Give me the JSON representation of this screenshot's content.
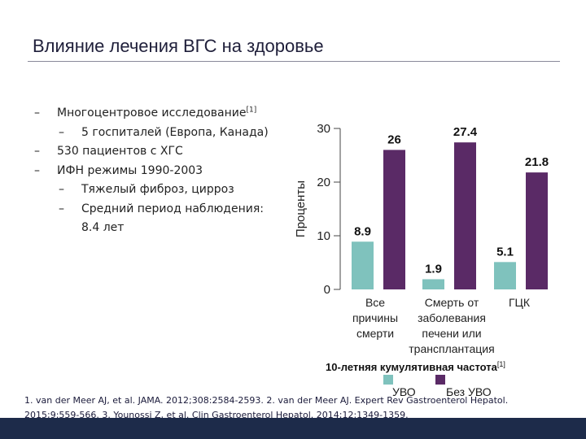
{
  "slide": {
    "title": "Влияние лечения ВГС на здоровье"
  },
  "bullets": {
    "b1_text": "Многоцентровое исследование",
    "b1_sup": "[1]",
    "b1a": "5 госпиталей (Европа, Канада)",
    "b2": "530 пациентов с ХГС",
    "b3": "ИФН режимы 1990-2003",
    "b3a": "Тяжелый фиброз, цирроз",
    "b3b": "Средний период наблюдения:",
    "b3b_cont": "8.4 лет",
    "dash": "–"
  },
  "chart_data": {
    "type": "bar",
    "ylabel": "Проценты",
    "ylim": [
      0,
      30
    ],
    "yticks": [
      0,
      10,
      20,
      30
    ],
    "categories": [
      [
        "Все",
        "причины",
        "смерти"
      ],
      [
        "Смерть от",
        "заболевания",
        "печени или",
        "трансплантация"
      ],
      [
        "ГЦК"
      ]
    ],
    "series": [
      {
        "name": "УВО",
        "values": [
          8.9,
          1.9,
          5.1
        ],
        "color": "#7fc2bd"
      },
      {
        "name": "Без УВО",
        "values": [
          26,
          27.4,
          21.8
        ],
        "color": "#5a2a66"
      }
    ],
    "value_labels": [
      [
        "8.9",
        "1.9",
        "5.1"
      ],
      [
        "26",
        "27.4",
        "21.8"
      ]
    ],
    "xlabel": "10-летняя кумулятивная частота",
    "xlabel_sup": "[1]",
    "legend_position": "bottom"
  },
  "references": {
    "line1": "1. van der Meer AJ, et al. JAMA. 2012;308:2584-2593. 2. van der Meer AJ. Expert Rev Gastroenterol Hepatol.",
    "line2": "2015;9:559-566. 3. Younossi Z, et al. Clin Gastroenterol Hepatol. 2014;12:1349-1359."
  },
  "colors": {
    "title": "#1f1f3a",
    "footer": "#1d2b4a",
    "svr": "#7fc2bd",
    "no_svr": "#5a2a66"
  }
}
